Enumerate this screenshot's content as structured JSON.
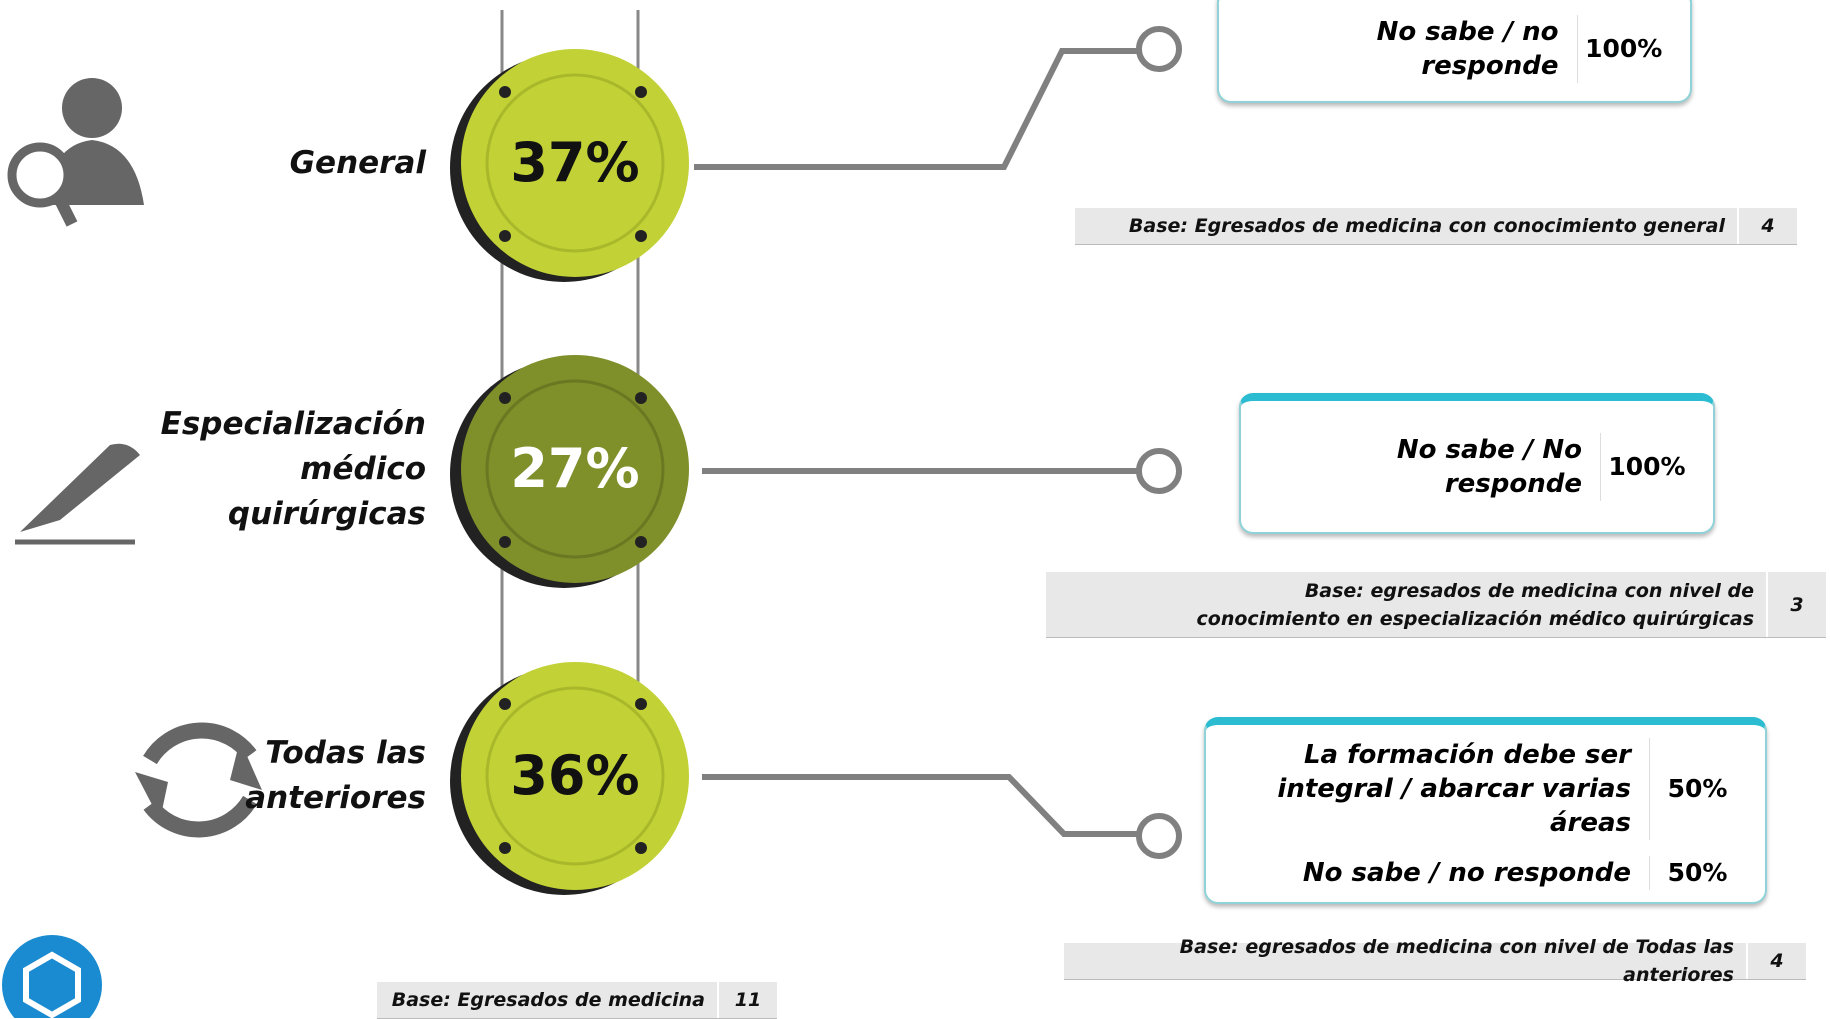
{
  "items": [
    {
      "label_lines": [
        "General"
      ],
      "percent": "37%",
      "responses": [
        {
          "text": "No sabe / no responde",
          "value": "100%"
        }
      ],
      "base": {
        "text": "Base: Egresados de medicina  con conocimiento general",
        "n": "4"
      }
    },
    {
      "label_lines": [
        "Especialización",
        "médico",
        "quirúrgicas"
      ],
      "percent": "27%",
      "responses": [
        {
          "text": "No sabe / No responde",
          "value": "100%"
        }
      ],
      "base": {
        "text": "Base: egresados de medicina con nivel de conocimiento en especialización médico quirúrgicas",
        "n": "3"
      }
    },
    {
      "label_lines": [
        "Todas las",
        "anteriores"
      ],
      "percent": "36%",
      "responses": [
        {
          "text": "La formación debe ser integral / abarcar varias áreas",
          "value": "50%"
        },
        {
          "text": "No sabe / no responde",
          "value": "50%"
        }
      ],
      "base": {
        "text": "Base: egresados de medicina con nivel de Todas las anteriores",
        "n": "4"
      }
    }
  ],
  "footer_base": {
    "text": "Base: Egresados de medicina",
    "n": "11"
  }
}
